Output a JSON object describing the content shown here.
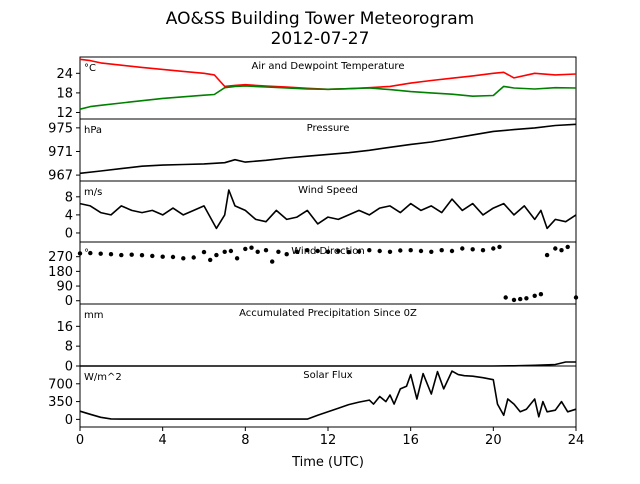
{
  "figure": {
    "title_line1": "AO&SS Building Tower Meteorogram",
    "title_line2": "2012-07-27",
    "xlabel": "Time (UTC)"
  },
  "chart_data": [
    {
      "type": "line",
      "title": "Air and Dewpoint Temperature",
      "unit": "°C",
      "xlim": [
        0,
        24
      ],
      "ylim": [
        10,
        29
      ],
      "yticks": [
        12,
        18,
        24
      ],
      "grid": false,
      "series": [
        {
          "color": "#ff0000",
          "x": [
            0,
            0.5,
            1,
            2,
            3,
            4,
            5,
            6,
            6.5,
            7,
            7.5,
            8,
            9,
            10,
            11,
            12,
            13,
            14,
            15,
            16,
            17,
            18,
            19,
            20,
            20.5,
            21,
            22,
            23,
            24
          ],
          "y": [
            28.3,
            27.9,
            27.2,
            26.5,
            25.8,
            25.2,
            24.6,
            24.0,
            23.5,
            20.0,
            20.3,
            20.5,
            20.1,
            19.8,
            19.4,
            19.1,
            19.3,
            19.6,
            20.0,
            21.0,
            21.8,
            22.5,
            23.2,
            24.0,
            24.3,
            22.6,
            24.0,
            23.5,
            23.8
          ]
        },
        {
          "color": "#008000",
          "x": [
            0,
            0.5,
            1,
            2,
            3,
            4,
            5,
            6,
            6.5,
            7,
            7.5,
            8,
            9,
            10,
            11,
            12,
            13,
            14,
            15,
            16,
            17,
            18,
            19,
            20,
            20.5,
            21,
            22,
            23,
            24
          ],
          "y": [
            13.0,
            13.8,
            14.2,
            14.9,
            15.6,
            16.3,
            16.8,
            17.3,
            17.5,
            19.6,
            20.0,
            20.1,
            19.8,
            19.5,
            19.2,
            19.1,
            19.3,
            19.5,
            19.0,
            18.4,
            18.0,
            17.6,
            17.0,
            17.2,
            20.0,
            19.5,
            19.2,
            19.6,
            19.5
          ]
        }
      ]
    },
    {
      "type": "line",
      "title": "Pressure",
      "unit": "hPa",
      "xlim": [
        0,
        24
      ],
      "ylim": [
        966,
        976.5
      ],
      "yticks": [
        967,
        971,
        975
      ],
      "grid": false,
      "series": [
        {
          "color": "#000000",
          "x": [
            0,
            1,
            2,
            3,
            4,
            5,
            6,
            7,
            7.5,
            8,
            9,
            10,
            11,
            12,
            13,
            14,
            15,
            16,
            17,
            18,
            19,
            20,
            21,
            22,
            23,
            24
          ],
          "y": [
            967.3,
            967.7,
            968.1,
            968.5,
            968.7,
            968.8,
            968.9,
            969.1,
            969.6,
            969.2,
            969.5,
            969.9,
            970.2,
            970.5,
            970.8,
            971.2,
            971.7,
            972.2,
            972.6,
            973.2,
            973.8,
            974.4,
            974.7,
            975.0,
            975.4,
            975.6
          ]
        }
      ]
    },
    {
      "type": "line",
      "title": "Wind Speed",
      "unit": "m/s",
      "xlim": [
        0,
        24
      ],
      "ylim": [
        -2,
        11.5
      ],
      "yticks": [
        0,
        4,
        8
      ],
      "grid": false,
      "series": [
        {
          "color": "#000000",
          "x": [
            0,
            0.5,
            1,
            1.5,
            2,
            2.5,
            3,
            3.5,
            4,
            4.5,
            5,
            5.5,
            6,
            6.3,
            6.6,
            7,
            7.2,
            7.5,
            8,
            8.5,
            9,
            9.5,
            10,
            10.5,
            11,
            11.5,
            12,
            12.5,
            13,
            13.5,
            14,
            14.5,
            15,
            15.5,
            16,
            16.5,
            17,
            17.5,
            18,
            18.5,
            19,
            19.5,
            20,
            20.5,
            21,
            21.5,
            22,
            22.3,
            22.6,
            23,
            23.5,
            24
          ],
          "y": [
            6.5,
            6.0,
            4.5,
            4.0,
            6.0,
            5.0,
            4.5,
            5.0,
            4.0,
            5.5,
            4.0,
            5.0,
            6.0,
            3.5,
            1.0,
            4.0,
            9.5,
            6.0,
            5.0,
            3.0,
            2.5,
            5.0,
            3.0,
            3.5,
            5.0,
            2.0,
            3.5,
            3.0,
            4.0,
            5.0,
            4.0,
            5.5,
            6.0,
            4.5,
            6.5,
            5.0,
            6.0,
            4.5,
            7.5,
            5.0,
            6.5,
            4.0,
            5.5,
            6.5,
            4.0,
            6.0,
            3.0,
            5.0,
            1.0,
            3.0,
            2.5,
            4.0
          ]
        }
      ]
    },
    {
      "type": "scatter",
      "title": "Wind Direction",
      "unit": "°",
      "xlim": [
        0,
        24
      ],
      "ylim": [
        -20,
        360
      ],
      "yticks": [
        0,
        90,
        180,
        270
      ],
      "grid": false,
      "series": [
        {
          "color": "#000000",
          "x": [
            0,
            0.5,
            1,
            1.5,
            2,
            2.5,
            3,
            3.5,
            4,
            4.5,
            5,
            5.5,
            6,
            6.3,
            6.6,
            7,
            7.3,
            7.6,
            8,
            8.3,
            8.6,
            9,
            9.3,
            9.6,
            10,
            10.5,
            11,
            11.5,
            12,
            12.5,
            13,
            13.5,
            14,
            14.5,
            15,
            15.5,
            16,
            16.5,
            17,
            17.5,
            18,
            18.5,
            19,
            19.5,
            20,
            20.3,
            20.6,
            21,
            21.3,
            21.6,
            22,
            22.3,
            22.6,
            23,
            23.3,
            23.6,
            24
          ],
          "y": [
            290,
            292,
            288,
            285,
            280,
            282,
            279,
            275,
            270,
            268,
            260,
            265,
            298,
            250,
            280,
            300,
            305,
            260,
            318,
            325,
            300,
            310,
            240,
            300,
            285,
            300,
            310,
            305,
            300,
            305,
            298,
            302,
            310,
            305,
            300,
            308,
            310,
            305,
            300,
            310,
            305,
            320,
            315,
            310,
            320,
            330,
            20,
            5,
            10,
            15,
            30,
            40,
            280,
            320,
            310,
            330,
            20
          ]
        }
      ]
    },
    {
      "type": "line",
      "title": "Accumulated Precipitation Since 0Z",
      "unit": "mm",
      "xlim": [
        0,
        24
      ],
      "ylim": [
        0,
        25
      ],
      "yticks": [
        0,
        8,
        16
      ],
      "grid": false,
      "series": [
        {
          "color": "#000000",
          "x": [
            0,
            20,
            21,
            22,
            23,
            23.5,
            24
          ],
          "y": [
            0,
            0,
            0.1,
            0.3,
            0.6,
            1.6,
            1.6
          ]
        }
      ]
    },
    {
      "type": "line",
      "title": "Solar Flux",
      "unit": "W/m^2",
      "xlim": [
        0,
        24
      ],
      "ylim": [
        -150,
        1050
      ],
      "yticks": [
        0,
        350,
        700
      ],
      "grid": false,
      "series": [
        {
          "color": "#000000",
          "x": [
            0,
            0.5,
            1,
            1.5,
            2,
            4,
            6,
            8,
            10,
            11,
            11.5,
            12,
            12.5,
            13,
            13.5,
            14,
            14.2,
            14.5,
            14.8,
            15,
            15.2,
            15.5,
            15.8,
            16,
            16.3,
            16.6,
            17,
            17.3,
            17.6,
            18,
            18.3,
            18.6,
            19,
            19.5,
            20,
            20.2,
            20.5,
            20.7,
            21,
            21.3,
            21.6,
            22,
            22.2,
            22.4,
            22.6,
            23,
            23.3,
            23.6,
            24
          ],
          "y": [
            160,
            100,
            40,
            10,
            5,
            5,
            5,
            5,
            5,
            5,
            80,
            150,
            220,
            290,
            340,
            380,
            300,
            450,
            350,
            480,
            300,
            600,
            650,
            880,
            400,
            900,
            500,
            940,
            600,
            950,
            880,
            860,
            850,
            820,
            780,
            300,
            80,
            400,
            300,
            150,
            200,
            400,
            50,
            350,
            150,
            180,
            350,
            150,
            200
          ]
        }
      ]
    }
  ]
}
